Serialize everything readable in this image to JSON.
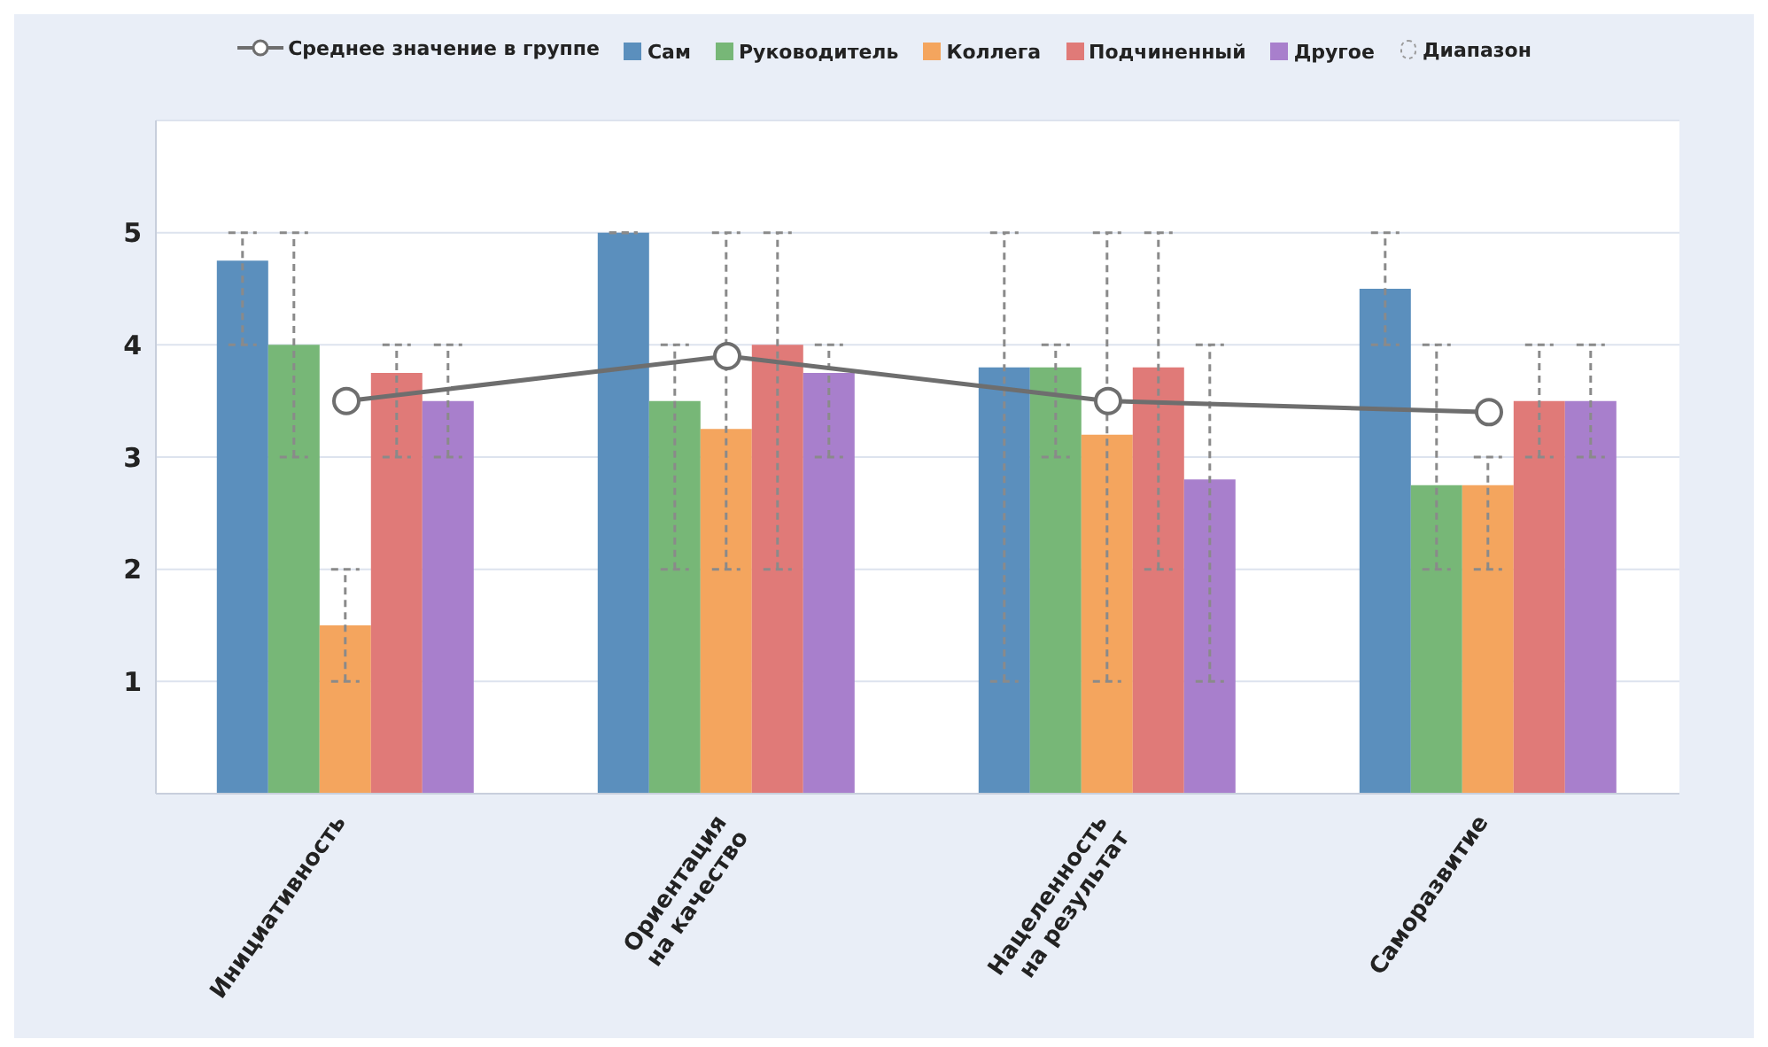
{
  "chart_data": {
    "type": "bar",
    "categories": [
      "Инициативность",
      "Ориентация на качество",
      "Нацеленность на результат",
      "Саморазвитие"
    ],
    "series": [
      {
        "name": "Среднее значение в группе",
        "type": "line",
        "color": "#6e6e6e",
        "marker": "circle",
        "values": [
          3.5,
          3.9,
          3.5,
          3.4
        ]
      },
      {
        "name": "Сам",
        "color": "#5b8fbd",
        "values": [
          4.75,
          5,
          3.8,
          4.5
        ],
        "errors": [
          [
            4,
            5
          ],
          [
            5,
            5
          ],
          [
            1,
            5
          ],
          [
            4,
            5
          ]
        ]
      },
      {
        "name": "Руководитель",
        "color": "#77b777",
        "values": [
          4,
          3.5,
          3.8,
          2.75
        ],
        "errors": [
          [
            3,
            5
          ],
          [
            2,
            4
          ],
          [
            3,
            4
          ],
          [
            2,
            4
          ]
        ]
      },
      {
        "name": "Коллега",
        "color": "#f4a55e",
        "values": [
          1.5,
          3.25,
          3.2,
          2.75
        ],
        "errors": [
          [
            1,
            2
          ],
          [
            2,
            5
          ],
          [
            1,
            5
          ],
          [
            2,
            3
          ]
        ]
      },
      {
        "name": "Подчиненный",
        "color": "#e07a78",
        "values": [
          3.75,
          4,
          3.8,
          3.5
        ],
        "errors": [
          [
            3,
            4
          ],
          [
            2,
            5
          ],
          [
            2,
            5
          ],
          [
            3,
            4
          ]
        ]
      },
      {
        "name": "Другое",
        "color": "#a87fcc",
        "values": [
          3.5,
          3.75,
          2.8,
          3.5
        ],
        "errors": [
          [
            3,
            4
          ],
          [
            3,
            4
          ],
          [
            1,
            4
          ],
          [
            3,
            4
          ]
        ]
      }
    ],
    "annotations": [
      "Диапазон"
    ],
    "ylim": [
      0,
      6
    ],
    "yticks": [
      {
        "value": 0,
        "label": null
      },
      1,
      2,
      3,
      4,
      5,
      {
        "value": 6,
        "label": null
      }
    ],
    "grid": "y",
    "legend": "top"
  }
}
